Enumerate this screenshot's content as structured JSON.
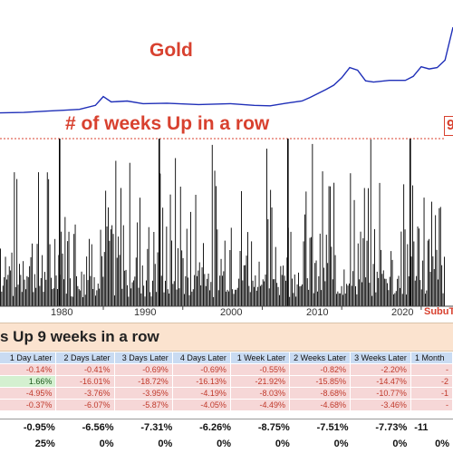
{
  "chart_data": [
    {
      "type": "line",
      "title": "Gold",
      "x_range": [
        1967,
        2024
      ],
      "series": [
        {
          "x": [
            1967,
            1970,
            1973,
            1975,
            1977,
            1979,
            1980,
            1981,
            1983,
            1985,
            1988,
            1992,
            1996,
            1999,
            2001,
            2003,
            2005,
            2006,
            2008,
            2009,
            2010,
            2011,
            2012,
            2013,
            2014,
            2016,
            2018,
            2019,
            2020,
            2021,
            2022,
            2023,
            2024
          ],
          "values": [
            0.05,
            0.06,
            0.09,
            0.11,
            0.13,
            0.22,
            0.42,
            0.3,
            0.32,
            0.26,
            0.27,
            0.24,
            0.26,
            0.22,
            0.21,
            0.27,
            0.32,
            0.4,
            0.58,
            0.68,
            0.85,
            1.08,
            1.02,
            0.78,
            0.75,
            0.79,
            0.79,
            0.88,
            1.1,
            1.05,
            1.08,
            1.25,
            2.0
          ]
        }
      ]
    },
    {
      "type": "bar",
      "title": "# of weeks Up in a row",
      "x_ticks": [
        "1980",
        "1990",
        "2000",
        "2010",
        "2020"
      ],
      "threshold": 9,
      "threshold_label": "9"
    }
  ],
  "watermark": "SubuT",
  "table": {
    "banner": "s Up 9 weeks in a row",
    "headers": [
      "1 Day Later",
      "2 Days Later",
      "3 Days Later",
      "4 Days Later",
      "1 Week Later",
      "2 Weeks Later",
      "3 Weeks Later",
      "1 Month"
    ],
    "rows": [
      [
        "-0.14%",
        "-0.41%",
        "-0.69%",
        "-0.69%",
        "-0.55%",
        "-0.82%",
        "-2.20%",
        "-"
      ],
      [
        "1.66%",
        "-16.01%",
        "-18.72%",
        "-16.13%",
        "-21.92%",
        "-15.85%",
        "-14.47%",
        "-2"
      ],
      [
        "-4.95%",
        "-3.76%",
        "-3.95%",
        "-4.19%",
        "-8.03%",
        "-8.68%",
        "-10.77%",
        "-1"
      ],
      [
        "-0.37%",
        "-6.07%",
        "-5.87%",
        "-4.05%",
        "-4.49%",
        "-4.68%",
        "-3.46%",
        "-"
      ]
    ],
    "average": [
      "-0.95%",
      "-6.56%",
      "-7.31%",
      "-6.26%",
      "-8.75%",
      "-7.51%",
      "-7.73%",
      "-11"
    ],
    "pct_positive": [
      "25%",
      "0%",
      "0%",
      "0%",
      "0%",
      "0%",
      "0%",
      "0%"
    ]
  },
  "colors": {
    "gold_line": "#1f2fb8",
    "accent": "#d8412f",
    "banner": "#fbe3cf",
    "header": "#c9dbf2"
  }
}
